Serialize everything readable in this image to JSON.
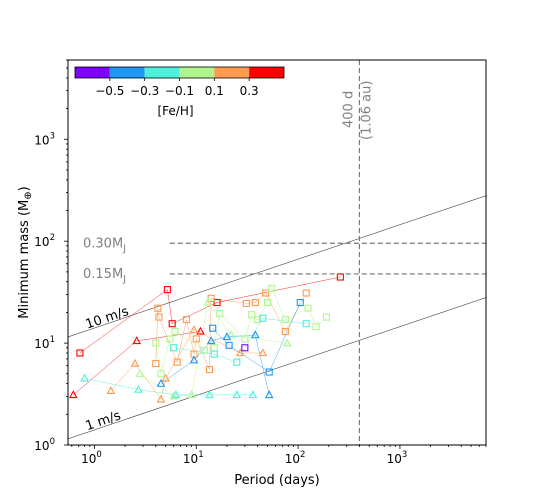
{
  "chart_data": {
    "type": "scatter",
    "xlabel": "Period (days)",
    "ylabel": "Minimum mass (M",
    "ylabel_sub": "⊕",
    "ylabel_close": ")",
    "xscale": "log",
    "yscale": "log",
    "xlim": [
      0.55,
      7000
    ],
    "ylim": [
      1,
      6000
    ],
    "x_ticks": [
      {
        "value": 1,
        "label": "10",
        "exp": "0"
      },
      {
        "value": 10,
        "label": "10",
        "exp": "1"
      },
      {
        "value": 100,
        "label": "10",
        "exp": "2"
      },
      {
        "value": 1000,
        "label": "10",
        "exp": "3"
      }
    ],
    "y_ticks": [
      {
        "value": 1,
        "label": "10",
        "exp": "0"
      },
      {
        "value": 10,
        "label": "10",
        "exp": "1"
      },
      {
        "value": 100,
        "label": "10",
        "exp": "2"
      },
      {
        "value": 1000,
        "label": "10",
        "exp": "3"
      }
    ],
    "colorbar": {
      "title": "[Fe/H]",
      "bins": [
        "#7f00ff",
        "#1f96f2",
        "#4df0d8",
        "#b0f68e",
        "#ff9a4f",
        "#ff0000"
      ],
      "tick_labels": [
        "−0.5",
        "−0.3",
        "−0.1",
        "0.1",
        "0.3"
      ]
    },
    "reference_lines": [
      {
        "label": "10 m/s",
        "points": [
          [
            0.55,
            11.5
          ],
          [
            7000,
            280
          ]
        ]
      },
      {
        "label": "1 m/s",
        "points": [
          [
            0.55,
            1.15
          ],
          [
            7000,
            28
          ]
        ]
      }
    ],
    "hlines": [
      {
        "label": "0.30M",
        "sub": "J",
        "y": 95.4
      },
      {
        "label": "0.15M",
        "sub": "J",
        "y": 47.7
      }
    ],
    "vline": {
      "x": 400,
      "label_line1": "400 d",
      "label_line2": "(1.06 au)"
    },
    "points": [
      {
        "x": 0.72,
        "y": 8.0,
        "m": "s",
        "c": "#ff0000",
        "s": 1
      },
      {
        "x": 5.2,
        "y": 33.5,
        "m": "s",
        "c": "#ff0000",
        "s": 1
      },
      {
        "x": 5.8,
        "y": 15.5,
        "m": "s",
        "c": "#ff0000",
        "s": 1
      },
      {
        "x": 16.0,
        "y": 25.0,
        "m": "s",
        "c": "#ff0000",
        "s": 1
      },
      {
        "x": 260,
        "y": 44.5,
        "m": "s",
        "c": "#ff0000",
        "s": 1
      },
      {
        "x": 0.62,
        "y": 3.1,
        "m": "t",
        "c": "#ff0000",
        "s": 2
      },
      {
        "x": 2.6,
        "y": 10.5,
        "m": "t",
        "c": "#ff0000",
        "s": 2
      },
      {
        "x": 11.0,
        "y": 13.0,
        "m": "t",
        "c": "#ff0000",
        "s": 2
      },
      {
        "x": 4.2,
        "y": 22.0,
        "m": "s",
        "c": "#ff9a4f",
        "s": 3
      },
      {
        "x": 4.3,
        "y": 18.0,
        "m": "s",
        "c": "#ff9a4f",
        "s": 3
      },
      {
        "x": 8.0,
        "y": 17.0,
        "m": "s",
        "c": "#ff9a4f",
        "s": 3
      },
      {
        "x": 14.0,
        "y": 27.5,
        "m": "s",
        "c": "#ff9a4f",
        "s": 3
      },
      {
        "x": 10.0,
        "y": 11.0,
        "m": "s",
        "c": "#ff9a4f",
        "s": 3
      },
      {
        "x": 6.5,
        "y": 6.5,
        "m": "s",
        "c": "#ff9a4f",
        "s": 3
      },
      {
        "x": 4.0,
        "y": 6.3,
        "m": "s",
        "c": "#ff9a4f",
        "s": 3
      },
      {
        "x": 31.0,
        "y": 24.5,
        "m": "s",
        "c": "#ff9a4f",
        "s": 3
      },
      {
        "x": 38.0,
        "y": 25.0,
        "m": "s",
        "c": "#ff9a4f",
        "s": 3
      },
      {
        "x": 48.0,
        "y": 31.0,
        "m": "s",
        "c": "#ff9a4f",
        "s": 3
      },
      {
        "x": 120.0,
        "y": 31.0,
        "m": "s",
        "c": "#ff9a4f",
        "s": 3
      },
      {
        "x": 75.0,
        "y": 13.0,
        "m": "s",
        "c": "#ff9a4f",
        "s": 3
      },
      {
        "x": 13.5,
        "y": 5.5,
        "m": "s",
        "c": "#ff9a4f",
        "s": 3
      },
      {
        "x": 9.5,
        "y": 7.8,
        "m": "s",
        "c": "#ff9a4f",
        "s": 3
      },
      {
        "x": 1.45,
        "y": 3.4,
        "m": "t",
        "c": "#ff9a4f",
        "s": 4
      },
      {
        "x": 2.5,
        "y": 6.3,
        "m": "t",
        "c": "#ff9a4f",
        "s": 4
      },
      {
        "x": 4.5,
        "y": 2.8,
        "m": "t",
        "c": "#ff9a4f",
        "s": 4
      },
      {
        "x": 5.0,
        "y": 4.5,
        "m": "t",
        "c": "#ff9a4f",
        "s": 4
      },
      {
        "x": 9.5,
        "y": 13.5,
        "m": "t",
        "c": "#ff9a4f",
        "s": 4
      },
      {
        "x": 27.0,
        "y": 8.0,
        "m": "t",
        "c": "#ff9a4f",
        "s": 4
      },
      {
        "x": 45.0,
        "y": 8.0,
        "m": "t",
        "c": "#ff9a4f",
        "s": 4
      },
      {
        "x": 4.0,
        "y": 10.0,
        "m": "s",
        "c": "#b0f68e",
        "s": 5
      },
      {
        "x": 5.5,
        "y": 11.0,
        "m": "s",
        "c": "#b0f68e",
        "s": 5
      },
      {
        "x": 6.2,
        "y": 13.0,
        "m": "s",
        "c": "#b0f68e",
        "s": 5
      },
      {
        "x": 15.0,
        "y": 9.0,
        "m": "s",
        "c": "#b0f68e",
        "s": 5
      },
      {
        "x": 17.0,
        "y": 19.5,
        "m": "s",
        "c": "#b0f68e",
        "s": 5
      },
      {
        "x": 35.0,
        "y": 19.0,
        "m": "s",
        "c": "#b0f68e",
        "s": 5
      },
      {
        "x": 40.0,
        "y": 17.0,
        "m": "s",
        "c": "#b0f68e",
        "s": 5
      },
      {
        "x": 50.0,
        "y": 25.0,
        "m": "s",
        "c": "#b0f68e",
        "s": 5
      },
      {
        "x": 55.0,
        "y": 34.5,
        "m": "s",
        "c": "#b0f68e",
        "s": 5
      },
      {
        "x": 75.0,
        "y": 17.0,
        "m": "s",
        "c": "#b0f68e",
        "s": 5
      },
      {
        "x": 125.0,
        "y": 22.0,
        "m": "s",
        "c": "#b0f68e",
        "s": 5
      },
      {
        "x": 150.0,
        "y": 14.5,
        "m": "s",
        "c": "#b0f68e",
        "s": 5
      },
      {
        "x": 190.0,
        "y": 18.0,
        "m": "s",
        "c": "#b0f68e",
        "s": 5
      },
      {
        "x": 4.5,
        "y": 5.0,
        "m": "s",
        "c": "#b0f68e",
        "s": 5
      },
      {
        "x": 12.0,
        "y": 8.5,
        "m": "s",
        "c": "#b0f68e",
        "s": 5
      },
      {
        "x": 30.0,
        "y": 11.0,
        "m": "s",
        "c": "#b0f68e",
        "s": 5
      },
      {
        "x": 2.8,
        "y": 5.0,
        "m": "t",
        "c": "#b0f68e",
        "s": 6
      },
      {
        "x": 6.0,
        "y": 3.0,
        "m": "t",
        "c": "#b0f68e",
        "s": 6
      },
      {
        "x": 9.0,
        "y": 3.1,
        "m": "t",
        "c": "#b0f68e",
        "s": 6
      },
      {
        "x": 13.0,
        "y": 25.0,
        "m": "t",
        "c": "#b0f68e",
        "s": 6
      },
      {
        "x": 78.0,
        "y": 10.0,
        "m": "t",
        "c": "#b0f68e",
        "s": 6
      },
      {
        "x": 22.0,
        "y": 12.0,
        "m": "t",
        "c": "#b0f68e",
        "s": 6
      },
      {
        "x": 6.0,
        "y": 9.0,
        "m": "s",
        "c": "#4df0d8",
        "s": 7
      },
      {
        "x": 15.0,
        "y": 7.8,
        "m": "s",
        "c": "#4df0d8",
        "s": 7
      },
      {
        "x": 25.0,
        "y": 6.5,
        "m": "s",
        "c": "#4df0d8",
        "s": 7
      },
      {
        "x": 45.0,
        "y": 17.5,
        "m": "s",
        "c": "#4df0d8",
        "s": 7
      },
      {
        "x": 120.0,
        "y": 15.5,
        "m": "s",
        "c": "#4df0d8",
        "s": 7
      },
      {
        "x": 0.8,
        "y": 4.5,
        "m": "t",
        "c": "#4df0d8",
        "s": 8
      },
      {
        "x": 2.7,
        "y": 3.5,
        "m": "t",
        "c": "#4df0d8",
        "s": 8
      },
      {
        "x": 6.3,
        "y": 3.1,
        "m": "t",
        "c": "#4df0d8",
        "s": 8
      },
      {
        "x": 13.5,
        "y": 3.1,
        "m": "t",
        "c": "#4df0d8",
        "s": 8
      },
      {
        "x": 25.0,
        "y": 3.1,
        "m": "t",
        "c": "#4df0d8",
        "s": 8
      },
      {
        "x": 36.0,
        "y": 3.1,
        "m": "t",
        "c": "#4df0d8",
        "s": 8
      },
      {
        "x": 14.5,
        "y": 14.0,
        "m": "s",
        "c": "#1f96f2",
        "s": 9
      },
      {
        "x": 21.0,
        "y": 9.5,
        "m": "s",
        "c": "#1f96f2",
        "s": 9
      },
      {
        "x": 52.0,
        "y": 5.2,
        "m": "s",
        "c": "#1f96f2",
        "s": 9
      },
      {
        "x": 105.0,
        "y": 25.0,
        "m": "s",
        "c": "#1f96f2",
        "s": 9
      },
      {
        "x": 4.5,
        "y": 4.0,
        "m": "t",
        "c": "#1f96f2",
        "s": 10
      },
      {
        "x": 9.5,
        "y": 6.8,
        "m": "t",
        "c": "#1f96f2",
        "s": 10
      },
      {
        "x": 14.0,
        "y": 10.5,
        "m": "t",
        "c": "#1f96f2",
        "s": 10
      },
      {
        "x": 20.0,
        "y": 11.5,
        "m": "t",
        "c": "#1f96f2",
        "s": 10
      },
      {
        "x": 38.0,
        "y": 12.0,
        "m": "t",
        "c": "#1f96f2",
        "s": 10
      },
      {
        "x": 52.0,
        "y": 3.1,
        "m": "t",
        "c": "#1f96f2",
        "s": 10
      },
      {
        "x": 30.0,
        "y": 9.0,
        "m": "s",
        "c": "#7f00ff",
        "s": 11
      }
    ]
  }
}
